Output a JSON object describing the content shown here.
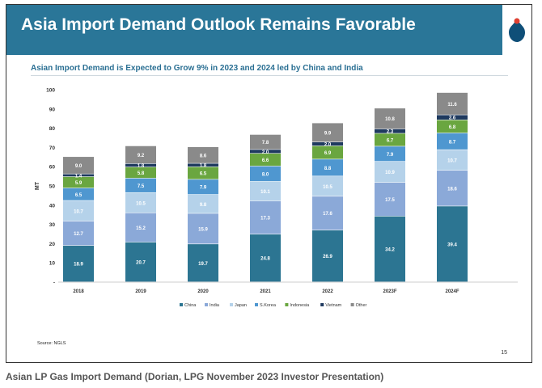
{
  "slide": {
    "title": "Asia Import Demand Outlook Remains Favorable",
    "subtitle": "Asian Import Demand is Expected to Grow 9% in 2023 and 2024 led by China and India",
    "source": "Source: NGLS",
    "page_number": "15"
  },
  "caption": "Asian LP Gas Import Demand (Dorian, LPG November 2023 Investor Presentation)",
  "chart_data": {
    "type": "bar",
    "stacked": true,
    "title": "",
    "xlabel": "",
    "ylabel": "MT",
    "ylim": [
      0,
      100
    ],
    "yticks": [
      0,
      10,
      20,
      30,
      40,
      50,
      60,
      70,
      80,
      90,
      100
    ],
    "ytick_labels": [
      "-",
      "10",
      "20",
      "30",
      "40",
      "50",
      "60",
      "70",
      "80",
      "90",
      "100"
    ],
    "categories": [
      "2018",
      "2019",
      "2020",
      "2021",
      "2022",
      "2023F",
      "2024F"
    ],
    "legend_position": "bottom",
    "series": [
      {
        "name": "China",
        "color": "#2c7592",
        "values": [
          18.9,
          20.7,
          19.7,
          24.8,
          26.9,
          34.2,
          39.4
        ]
      },
      {
        "name": "India",
        "color": "#8ba9d8",
        "values": [
          12.7,
          15.2,
          15.9,
          17.3,
          17.6,
          17.5,
          18.6
        ]
      },
      {
        "name": "Japan",
        "color": "#b5d2ea",
        "values": [
          10.7,
          10.5,
          9.8,
          10.1,
          10.5,
          10.9,
          10.7
        ]
      },
      {
        "name": "S.Korea",
        "color": "#4f97d0",
        "values": [
          6.5,
          7.5,
          7.9,
          8.0,
          8.8,
          7.9,
          8.7
        ]
      },
      {
        "name": "Indonesia",
        "color": "#6aa640",
        "values": [
          5.9,
          5.8,
          6.5,
          6.6,
          6.9,
          6.7,
          6.8
        ]
      },
      {
        "name": "Vietnam",
        "color": "#1f3a5f",
        "values": [
          1.4,
          1.8,
          1.8,
          2.0,
          2.0,
          2.3,
          2.6
        ]
      },
      {
        "name": "Other",
        "color": "#8a8a8a",
        "values": [
          9.0,
          9.2,
          8.6,
          7.8,
          9.9,
          10.8,
          11.6
        ]
      }
    ]
  }
}
